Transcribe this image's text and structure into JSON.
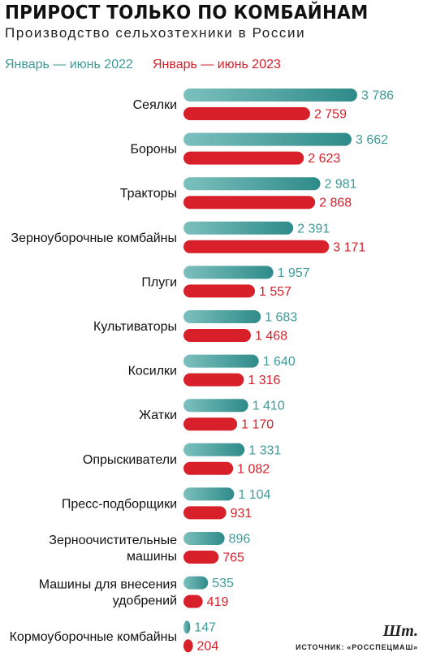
{
  "chart_data": {
    "type": "bar",
    "orientation": "horizontal",
    "title": "ПРИРОСТ ТОЛЬКО ПО КОМБАЙНАМ",
    "subtitle": "Производство сельхозтехники в России",
    "categories": [
      [
        "Сеялки"
      ],
      [
        "Бороны"
      ],
      [
        "Тракторы"
      ],
      [
        "Зерноуборочные комбайны"
      ],
      [
        "Плуги"
      ],
      [
        "Культиваторы"
      ],
      [
        "Косилки"
      ],
      [
        "Жатки"
      ],
      [
        "Опрыскиватели"
      ],
      [
        "Пресс-подборщики"
      ],
      [
        "Зерноочистительные",
        "машины"
      ],
      [
        "Машины для внесения",
        "удобрений"
      ],
      [
        "Кормоуборочные комбайны"
      ]
    ],
    "series": [
      {
        "name": "Январь — июнь 2022",
        "color": "#3d9a98",
        "values": [
          3786,
          3662,
          2981,
          2391,
          1957,
          1683,
          1640,
          1410,
          1331,
          1104,
          896,
          535,
          147
        ],
        "labels": [
          "3 786",
          "3 662",
          "2 981",
          "2 391",
          "1 957",
          "1 683",
          "1 640",
          "1 410",
          "1 331",
          "1 104",
          "896",
          "535",
          "147"
        ]
      },
      {
        "name": "Январь — июнь 2023",
        "color": "#d7202a",
        "values": [
          2759,
          2623,
          2868,
          3171,
          1557,
          1468,
          1316,
          1170,
          1082,
          931,
          765,
          419,
          204
        ],
        "labels": [
          "2 759",
          "2 623",
          "2 868",
          "3 171",
          "1 557",
          "1 468",
          "1 316",
          "1 170",
          "1 082",
          "931",
          "765",
          "419",
          "204"
        ]
      }
    ],
    "xlim": [
      0,
      3786
    ],
    "legend_position": "top-left",
    "grid": false
  },
  "unit": "Шт.",
  "source": "ИСТОЧНИК: «РОССПЕЦМАШ»"
}
